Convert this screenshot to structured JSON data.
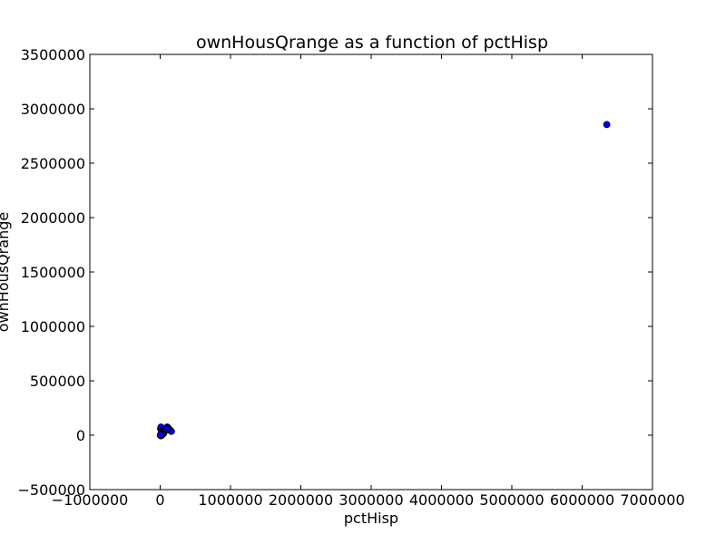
{
  "chart_data": {
    "type": "scatter",
    "title": "ownHousQrange as a function of pctHisp",
    "xlabel": "pctHisp",
    "ylabel": "ownHousQrange",
    "xlim": [
      -1000000,
      7000000
    ],
    "ylim": [
      -500000,
      3500000
    ],
    "xticks": [
      -1000000,
      0,
      1000000,
      2000000,
      3000000,
      4000000,
      5000000,
      6000000,
      7000000
    ],
    "yticks": [
      -500000,
      0,
      500000,
      1000000,
      1500000,
      2000000,
      2500000,
      3000000,
      3500000
    ],
    "xtick_labels": [
      "−1000000",
      "0",
      "1000000",
      "2000000",
      "3000000",
      "4000000",
      "5000000",
      "6000000",
      "7000000"
    ],
    "ytick_labels": [
      "−500000",
      "0",
      "500000",
      "1000000",
      "1500000",
      "2000000",
      "2500000",
      "3000000",
      "3500000"
    ],
    "grid": false,
    "marker_color": "#0000ff",
    "marker_edge_color": "#000000",
    "series": [
      {
        "x": [
          6350000,
          5000,
          12000,
          8000,
          15000,
          20000,
          25000,
          30000,
          35000,
          10000,
          18000,
          40000,
          28000,
          22000,
          45000,
          55000,
          60000,
          70000,
          80000,
          90000,
          100000,
          110000,
          120000,
          130000,
          150000,
          140000,
          160000,
          105000,
          95000,
          2000,
          6000,
          3000
        ],
        "y": [
          2855000,
          60000,
          75000,
          5000,
          10000,
          0,
          20000,
          15000,
          30000,
          -5000,
          40000,
          35000,
          2000,
          8000,
          12000,
          25000,
          38000,
          45000,
          55000,
          65000,
          75000,
          70000,
          60000,
          50000,
          40000,
          48000,
          35000,
          52000,
          58000,
          0,
          -3000,
          3000
        ]
      }
    ]
  }
}
